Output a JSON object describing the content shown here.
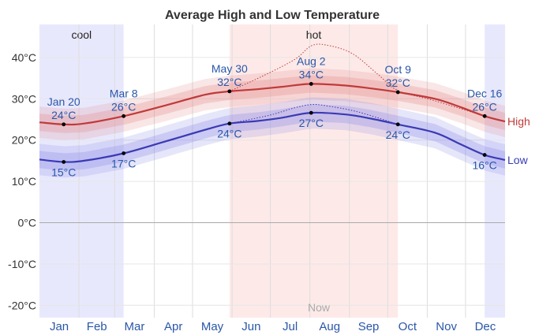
{
  "chart_data": {
    "type": "line",
    "title": "Average High and Low Temperature",
    "ylim": [
      -23,
      48
    ],
    "yticks": [
      -20,
      -10,
      0,
      10,
      20,
      30,
      40
    ],
    "ytick_labels": [
      "-20°C",
      "-10°C",
      "0°C",
      "10°C",
      "20°C",
      "30°C",
      "40°C"
    ],
    "months": [
      "Jan",
      "Feb",
      "Mar",
      "Apr",
      "May",
      "Jun",
      "Jul",
      "Aug",
      "Sep",
      "Oct",
      "Nov",
      "Dec"
    ],
    "x_day_range": [
      0,
      365
    ],
    "seasons": [
      {
        "name": "cool",
        "start_day": 0,
        "end_day": 66,
        "color": "#e8e8fd"
      },
      {
        "name": "hot",
        "start_day": 149,
        "end_day": 281,
        "color": "#fdeae8"
      },
      {
        "name": "",
        "start_day": 349,
        "end_day": 365,
        "color": "#e8e8fd"
      }
    ],
    "now_label": "Now",
    "now_day": 219,
    "series": [
      {
        "name": "High",
        "color": "#c03a3a",
        "band_color": "#e58c8c",
        "days": [
          0,
          19,
          35,
          66,
          100,
          130,
          149,
          170,
          190,
          213,
          240,
          260,
          281,
          310,
          330,
          349,
          365
        ],
        "values": [
          24.3,
          23.8,
          24,
          25.8,
          28.5,
          31,
          31.8,
          32.3,
          32.9,
          33.6,
          33.2,
          32.5,
          31.6,
          30,
          28,
          25.8,
          24.5
        ],
        "record_days": [
          149,
          175,
          200,
          213,
          225,
          245,
          265,
          281,
          310,
          349
        ],
        "record_values": [
          31.8,
          35.5,
          39.5,
          42.8,
          43,
          41,
          36,
          32,
          29.5,
          25.8
        ],
        "annotations": [
          {
            "date": "Jan 20",
            "value": "24°C",
            "day": 19,
            "temp": 23.8,
            "pos": "above"
          },
          {
            "date": "Mar 8",
            "value": "26°C",
            "day": 66,
            "temp": 25.8,
            "pos": "above"
          },
          {
            "date": "May 30",
            "value": "32°C",
            "day": 149,
            "temp": 31.8,
            "pos": "above"
          },
          {
            "date": "Aug 2",
            "value": "34°C",
            "day": 213,
            "temp": 33.6,
            "pos": "above"
          },
          {
            "date": "Oct 9",
            "value": "32°C",
            "day": 281,
            "temp": 31.6,
            "pos": "above"
          },
          {
            "date": "Dec 16",
            "value": "26°C",
            "day": 349,
            "temp": 25.8,
            "pos": "above"
          }
        ]
      },
      {
        "name": "Low",
        "color": "#3a3ab4",
        "band_color": "#8c8ce8",
        "days": [
          0,
          19,
          35,
          66,
          100,
          130,
          149,
          170,
          190,
          213,
          240,
          260,
          281,
          310,
          330,
          349,
          365
        ],
        "values": [
          15.3,
          14.7,
          15,
          16.8,
          19.8,
          22.5,
          24,
          24.6,
          25.4,
          26.6,
          26.2,
          25.2,
          23.8,
          21.8,
          19,
          16.4,
          15.2
        ],
        "record_days": [
          149,
          180,
          200,
          213,
          225,
          250,
          281
        ],
        "record_values": [
          24,
          26,
          27.8,
          28.6,
          28.3,
          26.8,
          23.8
        ],
        "annotations": [
          {
            "date": "",
            "value": "15°C",
            "day": 19,
            "temp": 14.7,
            "pos": "below"
          },
          {
            "date": "",
            "value": "17°C",
            "day": 66,
            "temp": 16.8,
            "pos": "below"
          },
          {
            "date": "",
            "value": "24°C",
            "day": 149,
            "temp": 24,
            "pos": "below"
          },
          {
            "date": "",
            "value": "27°C",
            "day": 213,
            "temp": 26.6,
            "pos": "below"
          },
          {
            "date": "",
            "value": "24°C",
            "day": 281,
            "temp": 23.8,
            "pos": "below"
          },
          {
            "date": "",
            "value": "16°C",
            "day": 349,
            "temp": 16.4,
            "pos": "below"
          }
        ]
      }
    ]
  }
}
